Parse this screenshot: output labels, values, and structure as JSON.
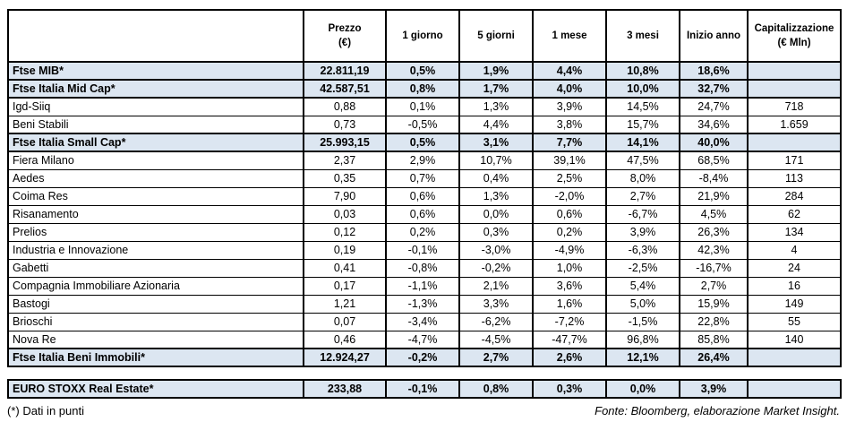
{
  "colors": {
    "index_row_bg": "#dce6f1",
    "border": "#000000",
    "background": "#ffffff"
  },
  "chart_data": {
    "type": "table",
    "columns": [
      {
        "line1": "Prezzo",
        "line2": "(€)"
      },
      {
        "line1": "1 giorno",
        "line2": ""
      },
      {
        "line1": "5 giorni",
        "line2": ""
      },
      {
        "line1": "1 mese",
        "line2": ""
      },
      {
        "line1": "3 mesi",
        "line2": ""
      },
      {
        "line1": "Inizio anno",
        "line2": ""
      },
      {
        "line1": "Capitalizzazione",
        "line2": "(€ Mln)"
      }
    ],
    "rows": [
      {
        "name": "Ftse MIB*",
        "type": "index",
        "values": [
          "22.811,19",
          "0,5%",
          "1,9%",
          "4,4%",
          "10,8%",
          "18,6%",
          ""
        ]
      },
      {
        "name": "Ftse Italia Mid Cap*",
        "type": "index",
        "values": [
          "42.587,51",
          "0,8%",
          "1,7%",
          "4,0%",
          "10,0%",
          "32,7%",
          ""
        ]
      },
      {
        "name": "Igd-Siiq",
        "type": "stock",
        "values": [
          "0,88",
          "0,1%",
          "1,3%",
          "3,9%",
          "14,5%",
          "24,7%",
          "718"
        ]
      },
      {
        "name": "Beni Stabili",
        "type": "stock",
        "values": [
          "0,73",
          "-0,5%",
          "4,4%",
          "3,8%",
          "15,7%",
          "34,6%",
          "1.659"
        ]
      },
      {
        "name": "Ftse Italia Small Cap*",
        "type": "index",
        "values": [
          "25.993,15",
          "0,5%",
          "3,1%",
          "7,7%",
          "14,1%",
          "40,0%",
          ""
        ]
      },
      {
        "name": "Fiera Milano",
        "type": "stock",
        "values": [
          "2,37",
          "2,9%",
          "10,7%",
          "39,1%",
          "47,5%",
          "68,5%",
          "171"
        ]
      },
      {
        "name": "Aedes",
        "type": "stock",
        "values": [
          "0,35",
          "0,7%",
          "0,4%",
          "2,5%",
          "8,0%",
          "-8,4%",
          "113"
        ]
      },
      {
        "name": "Coima Res",
        "type": "stock",
        "values": [
          "7,90",
          "0,6%",
          "1,3%",
          "-2,0%",
          "2,7%",
          "21,9%",
          "284"
        ]
      },
      {
        "name": "Risanamento",
        "type": "stock",
        "values": [
          "0,03",
          "0,6%",
          "0,0%",
          "0,6%",
          "-6,7%",
          "4,5%",
          "62"
        ]
      },
      {
        "name": "Prelios",
        "type": "stock",
        "values": [
          "0,12",
          "0,2%",
          "0,3%",
          "0,2%",
          "3,9%",
          "26,3%",
          "134"
        ]
      },
      {
        "name": "Industria e Innovazione",
        "type": "stock",
        "values": [
          "0,19",
          "-0,1%",
          "-3,0%",
          "-4,9%",
          "-6,3%",
          "42,3%",
          "4"
        ]
      },
      {
        "name": "Gabetti",
        "type": "stock",
        "values": [
          "0,41",
          "-0,8%",
          "-0,2%",
          "1,0%",
          "-2,5%",
          "-16,7%",
          "24"
        ]
      },
      {
        "name": "Compagnia Immobiliare Azionaria",
        "type": "stock",
        "values": [
          "0,17",
          "-1,1%",
          "2,1%",
          "3,6%",
          "5,4%",
          "2,7%",
          "16"
        ]
      },
      {
        "name": "Bastogi",
        "type": "stock",
        "values": [
          "1,21",
          "-1,3%",
          "3,3%",
          "1,6%",
          "5,0%",
          "15,9%",
          "149"
        ]
      },
      {
        "name": "Brioschi",
        "type": "stock",
        "values": [
          "0,07",
          "-3,4%",
          "-6,2%",
          "-7,2%",
          "-1,5%",
          "22,8%",
          "55"
        ]
      },
      {
        "name": "Nova Re",
        "type": "stock",
        "values": [
          "0,46",
          "-4,7%",
          "-4,5%",
          "-47,7%",
          "96,8%",
          "85,8%",
          "140"
        ]
      },
      {
        "name": "Ftse Italia Beni Immobili*",
        "type": "index",
        "values": [
          "12.924,27",
          "-0,2%",
          "2,7%",
          "2,6%",
          "12,1%",
          "26,4%",
          ""
        ]
      }
    ],
    "separate_rows": [
      {
        "name": "EURO STOXX Real Estate*",
        "type": "index",
        "values": [
          "233,88",
          "-0,1%",
          "0,8%",
          "0,3%",
          "0,0%",
          "3,9%",
          ""
        ]
      }
    ]
  },
  "footer": {
    "left": "(*) Dati in punti",
    "right": "Fonte: Bloomberg, elaborazione Market Insight."
  }
}
